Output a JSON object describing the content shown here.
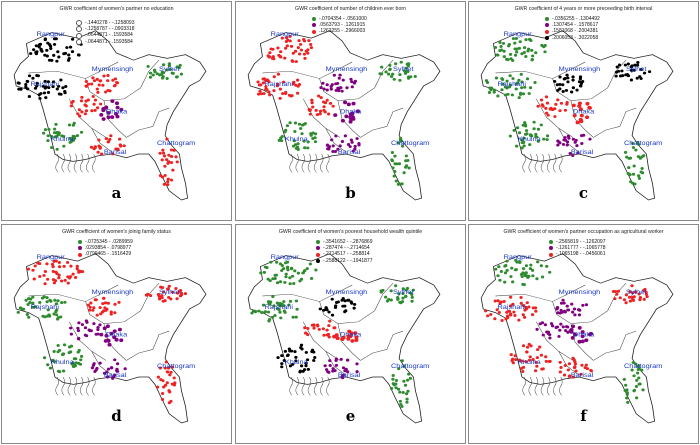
{
  "panels": [
    {
      "id": "a",
      "title": "GWR coefficient of women's partner no education",
      "label": "a",
      "legend": [
        {
          "range": "-.1440278 - -.1258093",
          "color": "#ffffff"
        },
        {
          "range": "-.1258787 - -.0903318",
          "color": "#ffffff"
        },
        {
          "range": "-.0644871 - .1593584",
          "color": "#ffffff"
        },
        {
          "range": "-.0644871 - .1593584",
          "color": "#ffffff"
        }
      ],
      "cities": [
        "Rangpur",
        "Rajshahi",
        "Mymensingh",
        "Sylhet",
        "Dhaka",
        "Khulna",
        "Barisal",
        "Chattogram"
      ]
    },
    {
      "id": "b",
      "title": "GWR coefficient of number of children ever born",
      "label": "b",
      "legend": [
        {
          "range": "-.0704354 - .0561000",
          "color": "#2e8b2e"
        },
        {
          "range": ".0563793 - .1261915",
          "color": "#800080"
        },
        {
          "range": ".1263255 - .2966003",
          "color": "#ee2222"
        }
      ],
      "cities": [
        "Rangpur",
        "Rajshahi",
        "Mymensingh",
        "Sylhet",
        "Dhaka",
        "Khulna",
        "Barisal",
        "Chattogram"
      ]
    },
    {
      "id": "c",
      "title": "GWR coefficient of 4 years or more preceeding birth interval",
      "label": "c",
      "legend": [
        {
          "range": "-.0356255 - .1304492",
          "color": "#2e8b2e"
        },
        {
          "range": ".1307454 - .1578617",
          "color": "#800080"
        },
        {
          "range": ".1581068 - .2004381",
          "color": "#ee2222"
        },
        {
          "range": ".2006053 - .3022058",
          "color": "#000000"
        }
      ],
      "cities": [
        "Rangpur",
        "Rajshahi",
        "Mymensingh",
        "Sylhet",
        "Dhaka",
        "Khulna",
        "Barisal",
        "Chattogram"
      ]
    },
    {
      "id": "d",
      "title": "GWR coefficient of women's joinig family status",
      "label": "d",
      "legend": [
        {
          "range": "-.0725345 - .0289959",
          "color": "#2e8b2e"
        },
        {
          "range": ".0293854 - .0798977",
          "color": "#800080"
        },
        {
          "range": ".0799465 - .1516429",
          "color": "#ee2222"
        }
      ],
      "cities": [
        "Rangpur",
        "Rajshahi",
        "Mymensingh",
        "Sylhet",
        "Dhaka",
        "Khulna",
        "Barisal",
        "Chattogram"
      ]
    },
    {
      "id": "e",
      "title": "GWR coefficient of women's poorest household wealth quintile",
      "label": "e",
      "legend": [
        {
          "range": "-.3541652 - -.2876869",
          "color": "#2e8b2e"
        },
        {
          "range": "-.287474 - -.2714654",
          "color": "#800080"
        },
        {
          "range": "-.2714517 - -.258814",
          "color": "#ee2222"
        },
        {
          "range": "-.2588122 - -.1941877",
          "color": "#000000"
        }
      ],
      "cities": [
        "Rangpur",
        "Rajshahi",
        "Mymensingh",
        "Sylhet",
        "Dhaka",
        "Khulna",
        "Barisal",
        "Chattogram"
      ]
    },
    {
      "id": "f",
      "title": "GWR coefficient of women's partner occupation as agricultural worker",
      "label": "f",
      "legend": [
        {
          "range": "-.2565819 - -.1262097",
          "color": "#2e8b2e"
        },
        {
          "range": "-.1261777 - -.1065778",
          "color": "#800080"
        },
        {
          "range": "-.1065198 - -.0456061",
          "color": "#ee2222"
        }
      ],
      "cities": [
        "Rangpur",
        "Rajshahi",
        "Mymensingh",
        "Sylhet",
        "Dhaka",
        "Khulna",
        "Barisal",
        "Chattogram"
      ]
    }
  ],
  "colors": {
    "green": "#2e8b2e",
    "purple": "#800080",
    "red": "#ee2222",
    "black": "#000000",
    "city": "#1838c8"
  }
}
